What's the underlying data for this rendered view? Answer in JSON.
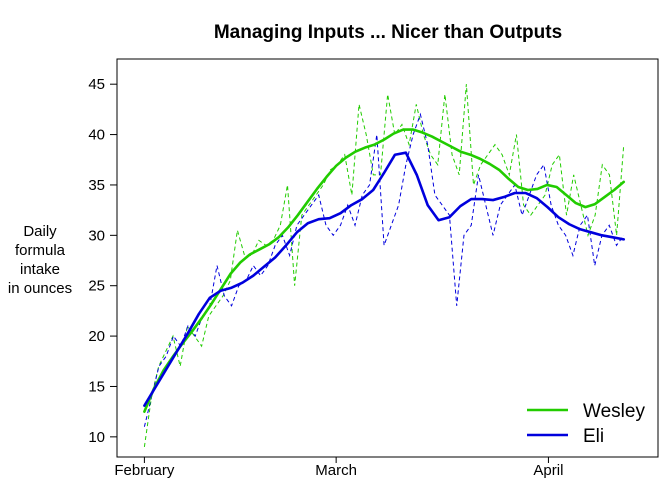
{
  "chart_data": {
    "type": "line",
    "title": "Managing Inputs ... Nicer than Outputs",
    "ylabel_lines": [
      "Daily",
      "formula",
      "intake",
      "in ounces"
    ],
    "xlabel": "",
    "x_ticks": [
      "February",
      "March",
      "April"
    ],
    "x_tick_days": [
      0,
      28,
      59
    ],
    "y_ticks": [
      "10",
      "15",
      "20",
      "25",
      "30",
      "35",
      "40",
      "45"
    ],
    "xlim": [
      -4,
      75
    ],
    "ylim": [
      8,
      47.5
    ],
    "legend_position": "bottom-right",
    "grid": false,
    "series": [
      {
        "name": "Wesley",
        "color": "#22cc00",
        "raw_values": [
          9,
          14,
          17,
          18.5,
          20,
          17,
          21,
          20,
          19,
          22,
          23,
          24,
          25.5,
          30.5,
          28,
          28,
          29.5,
          29,
          29.5,
          31,
          35,
          25,
          32,
          33,
          34,
          35,
          36.5,
          37,
          38,
          34,
          43,
          40,
          36,
          36,
          44,
          40,
          41,
          39,
          43,
          40,
          38,
          37,
          44,
          38,
          36,
          45,
          35,
          37,
          38,
          39,
          38,
          36,
          40,
          33,
          32,
          33,
          34,
          37,
          38,
          32,
          36,
          33,
          30,
          32,
          37,
          36,
          30,
          39
        ],
        "smooth_values": [
          12.5,
          14.8,
          16.6,
          18,
          19.3,
          20.5,
          21.8,
          23.2,
          24.7,
          26.2,
          27.3,
          28.1,
          28.6,
          29.1,
          29.8,
          30.8,
          32,
          33.3,
          34.6,
          35.8,
          36.9,
          37.7,
          38.3,
          38.7,
          39,
          39.5,
          40.1,
          40.5,
          40.5,
          40.2,
          39.8,
          39.3,
          38.8,
          38.3,
          38,
          37.6,
          37.1,
          36.5,
          35.6,
          34.8,
          34.5,
          34.6,
          35,
          34.8,
          34,
          33.2,
          32.8,
          33.1,
          33.8,
          34.5,
          35.3
        ]
      },
      {
        "name": "Eli",
        "color": "#0000dd",
        "raw_values": [
          11,
          14,
          17,
          18,
          20,
          19,
          21,
          20,
          22,
          23,
          27,
          24,
          23,
          25,
          25.5,
          27,
          26,
          27,
          29,
          30,
          28,
          31,
          32,
          33,
          34,
          31,
          30,
          31,
          33,
          31,
          34,
          35,
          40,
          29,
          31,
          33,
          37,
          40,
          42,
          39,
          34,
          33,
          32,
          23,
          30,
          31,
          36,
          33,
          30,
          33,
          34,
          35,
          32,
          34,
          36,
          37,
          33,
          31,
          30,
          28,
          31,
          32,
          27,
          30,
          31,
          29,
          30
        ],
        "smooth_values": [
          13.1,
          14.9,
          16.7,
          18.5,
          20.3,
          22.2,
          23.8,
          24.5,
          24.8,
          25.3,
          26,
          26.9,
          27.8,
          29,
          30.3,
          31.2,
          31.6,
          31.7,
          32.2,
          33,
          33.6,
          34.5,
          36.2,
          38,
          38.2,
          36,
          33,
          31.5,
          31.8,
          32.9,
          33.6,
          33.6,
          33.5,
          33.8,
          34.2,
          34.2,
          33.7,
          32.8,
          31.8,
          31.1,
          30.6,
          30.3,
          30,
          29.8,
          29.6
        ]
      }
    ]
  }
}
